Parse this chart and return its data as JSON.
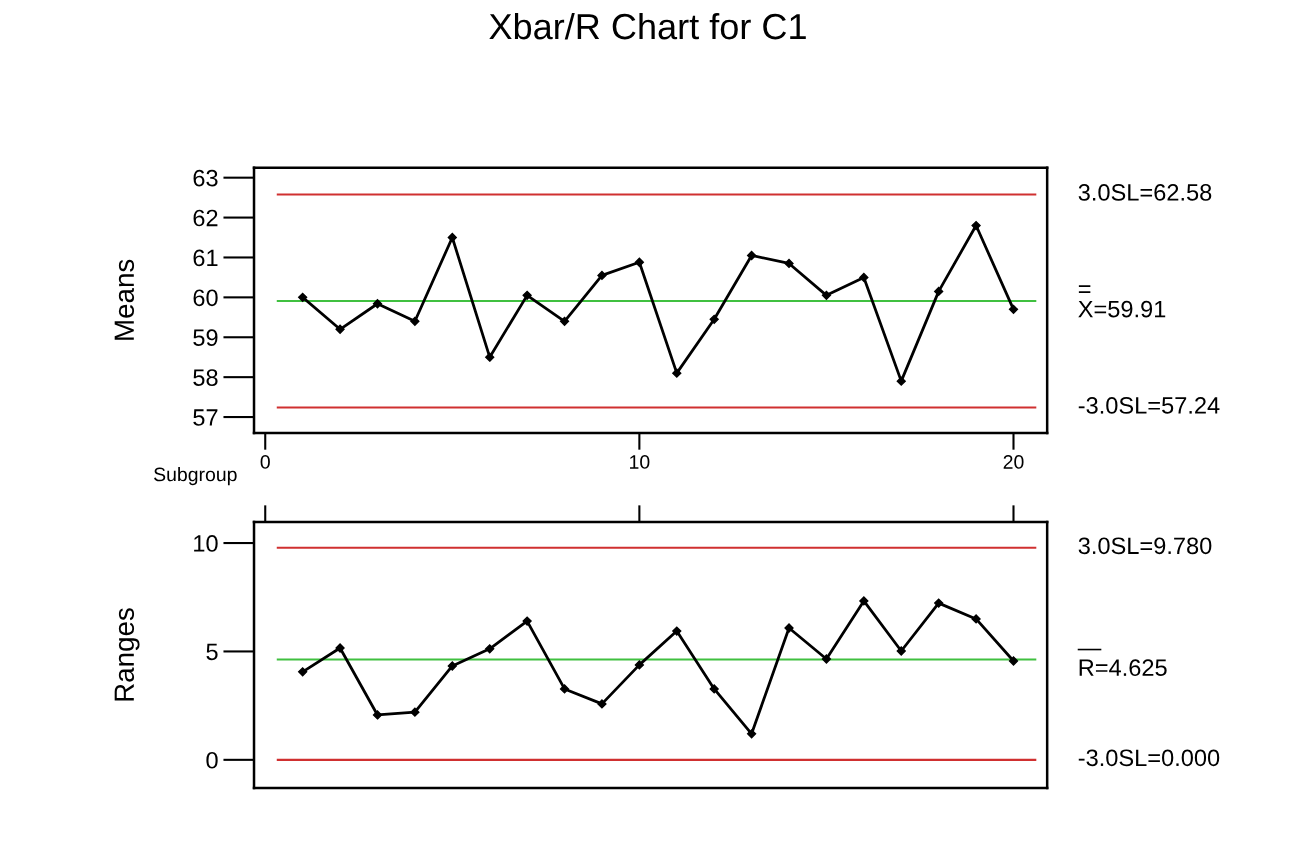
{
  "chart_data": [
    {
      "type": "line",
      "title": "Xbar/R Chart for C1",
      "ylabel": "Means",
      "xlabel": "Subgroup",
      "marker": "diamond",
      "grid": false,
      "x": [
        1,
        2,
        3,
        4,
        5,
        6,
        7,
        8,
        9,
        10,
        11,
        12,
        13,
        14,
        15,
        16,
        17,
        18,
        19,
        20
      ],
      "series": [
        {
          "color": "#000000",
          "values": [
            60.0,
            59.2,
            59.84,
            59.4,
            61.5,
            58.5,
            60.05,
            59.4,
            60.55,
            60.88,
            58.1,
            59.45,
            61.05,
            60.85,
            60.05,
            60.5,
            57.9,
            60.15,
            61.8,
            59.7
          ]
        }
      ],
      "xlim": [
        -0.3,
        20.9
      ],
      "xticks": [
        0,
        10,
        20
      ],
      "ylim": [
        56.6,
        63.25
      ],
      "yticks": [
        57,
        58,
        59,
        60,
        61,
        62,
        63
      ],
      "ref_lines": [
        {
          "axis": "y",
          "value": 62.58,
          "label": "3.0SL=62.58",
          "color": "#d03030"
        },
        {
          "axis": "y",
          "value": 59.91,
          "label": "=\nX=59.91",
          "color": "#40c040"
        },
        {
          "axis": "y",
          "value": 57.24,
          "label": "-3.0SL=57.24",
          "color": "#d03030"
        }
      ]
    },
    {
      "type": "line",
      "ylabel": "Ranges",
      "marker": "diamond",
      "grid": false,
      "tick_labels": "y",
      "x": [
        1,
        2,
        3,
        4,
        5,
        6,
        7,
        8,
        9,
        10,
        11,
        12,
        13,
        14,
        15,
        16,
        17,
        18,
        19,
        20
      ],
      "series": [
        {
          "color": "#000000",
          "values": [
            4.06,
            5.16,
            2.07,
            2.2,
            4.33,
            5.12,
            6.4,
            3.27,
            2.58,
            4.38,
            5.94,
            3.27,
            1.2,
            6.08,
            4.65,
            7.33,
            5.02,
            7.23,
            6.5,
            4.56
          ]
        }
      ],
      "xlim": [
        -0.3,
        20.9
      ],
      "xticks": [
        0,
        10,
        20
      ],
      "ylim": [
        -1.3,
        10.97
      ],
      "yticks": [
        0,
        5,
        10
      ],
      "ref_lines": [
        {
          "axis": "y",
          "value": 9.78,
          "label": "3.0SL=9.780",
          "color": "#d03030"
        },
        {
          "axis": "y",
          "value": 4.625,
          "label": "—\nR=4.625",
          "color": "#40c040"
        },
        {
          "axis": "y",
          "value": 0.0,
          "label": "-3.0SL=0.000",
          "color": "#d03030"
        }
      ]
    }
  ]
}
